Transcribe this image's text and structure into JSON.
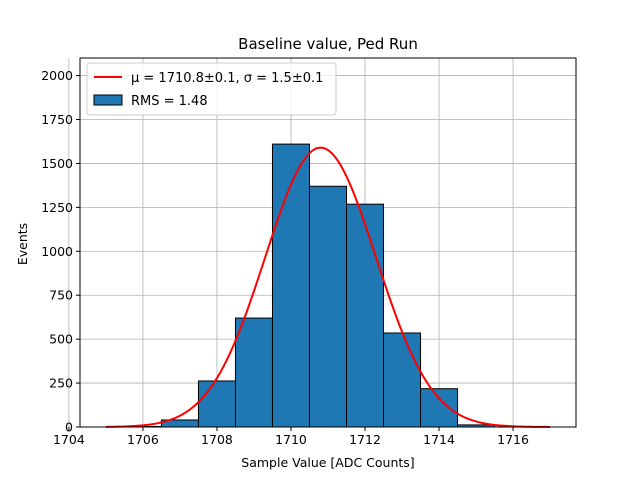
{
  "chart_data": {
    "type": "bar",
    "title": "Baseline value, Ped Run",
    "xlabel": "Sample Value [ADC Counts]",
    "ylabel": "Events",
    "xlim": [
      1704.3,
      1717.7
    ],
    "ylim": [
      0,
      2100
    ],
    "grid": true,
    "legend_position": "top-left",
    "x_ticks": [
      "1704",
      "1706",
      "1708",
      "1710",
      "1712",
      "1714",
      "1716"
    ],
    "x_tick_values": [
      1704,
      1706,
      1708,
      1710,
      1712,
      1714,
      1716
    ],
    "y_ticks": [
      "0",
      "250",
      "500",
      "750",
      "1000",
      "1250",
      "1500",
      "1750",
      "2000"
    ],
    "y_tick_values": [
      0,
      250,
      500,
      750,
      1000,
      1250,
      1500,
      1750,
      2000
    ],
    "histogram": {
      "name": "RMS = 1.48",
      "color": "#1f77b4",
      "edge_color": "#000000",
      "bin_edges": [
        1704.5,
        1705.5,
        1706.5,
        1707.5,
        1708.5,
        1709.5,
        1710.5,
        1711.5,
        1712.5,
        1713.5,
        1714.5,
        1715.5,
        1716.5
      ],
      "counts": [
        0,
        3,
        40,
        262,
        620,
        1610,
        1370,
        1268,
        535,
        218,
        12,
        0
      ]
    },
    "fit": {
      "name": "$\\mu = 1710.8\\pm0.1, \\sigma = 1.5\\pm0.1$",
      "legend_label": "μ = 1710.8±0.1, σ = 1.5±0.1",
      "color": "#ff0000",
      "type": "gaussian",
      "amplitude": 1590,
      "mean": 1710.8,
      "sigma": 1.5,
      "x_range": [
        1705,
        1717
      ]
    }
  }
}
